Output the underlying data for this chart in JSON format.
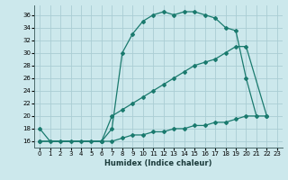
{
  "xlabel": "Humidex (Indice chaleur)",
  "bg_color": "#cce8ec",
  "grid_color": "#aacdd4",
  "line_color": "#1a7a6e",
  "x_ticks": [
    0,
    1,
    2,
    3,
    4,
    5,
    6,
    7,
    8,
    9,
    10,
    11,
    12,
    13,
    14,
    15,
    16,
    17,
    18,
    19,
    20,
    21,
    22,
    23
  ],
  "y_ticks": [
    16,
    18,
    20,
    22,
    24,
    26,
    28,
    30,
    32,
    34,
    36
  ],
  "xlim": [
    -0.5,
    23.5
  ],
  "ylim": [
    15.0,
    37.5
  ],
  "line1_x": [
    0,
    1,
    2,
    3,
    4,
    5,
    6,
    7,
    8,
    9,
    10,
    11,
    12,
    13,
    14,
    15,
    16,
    17,
    18,
    19,
    20,
    21
  ],
  "line1_y": [
    18,
    16,
    16,
    16,
    16,
    16,
    16,
    18,
    30,
    33,
    35,
    36,
    36.5,
    36,
    36.5,
    36.5,
    36,
    35.5,
    34,
    33.5,
    26,
    20
  ],
  "line2_x": [
    0,
    6,
    7,
    8,
    9,
    10,
    11,
    12,
    13,
    14,
    15,
    16,
    17,
    18,
    19,
    20,
    22
  ],
  "line2_y": [
    16,
    16,
    20,
    21,
    22,
    23,
    24,
    25,
    26,
    27,
    28,
    28.5,
    29,
    30,
    31,
    31,
    20
  ],
  "line3_x": [
    0,
    6,
    7,
    8,
    9,
    10,
    11,
    12,
    13,
    14,
    15,
    16,
    17,
    18,
    19,
    20,
    22
  ],
  "line3_y": [
    16,
    16,
    16,
    16.5,
    17,
    17,
    17.5,
    17.5,
    18,
    18,
    18.5,
    18.5,
    19,
    19,
    19.5,
    20,
    20
  ]
}
